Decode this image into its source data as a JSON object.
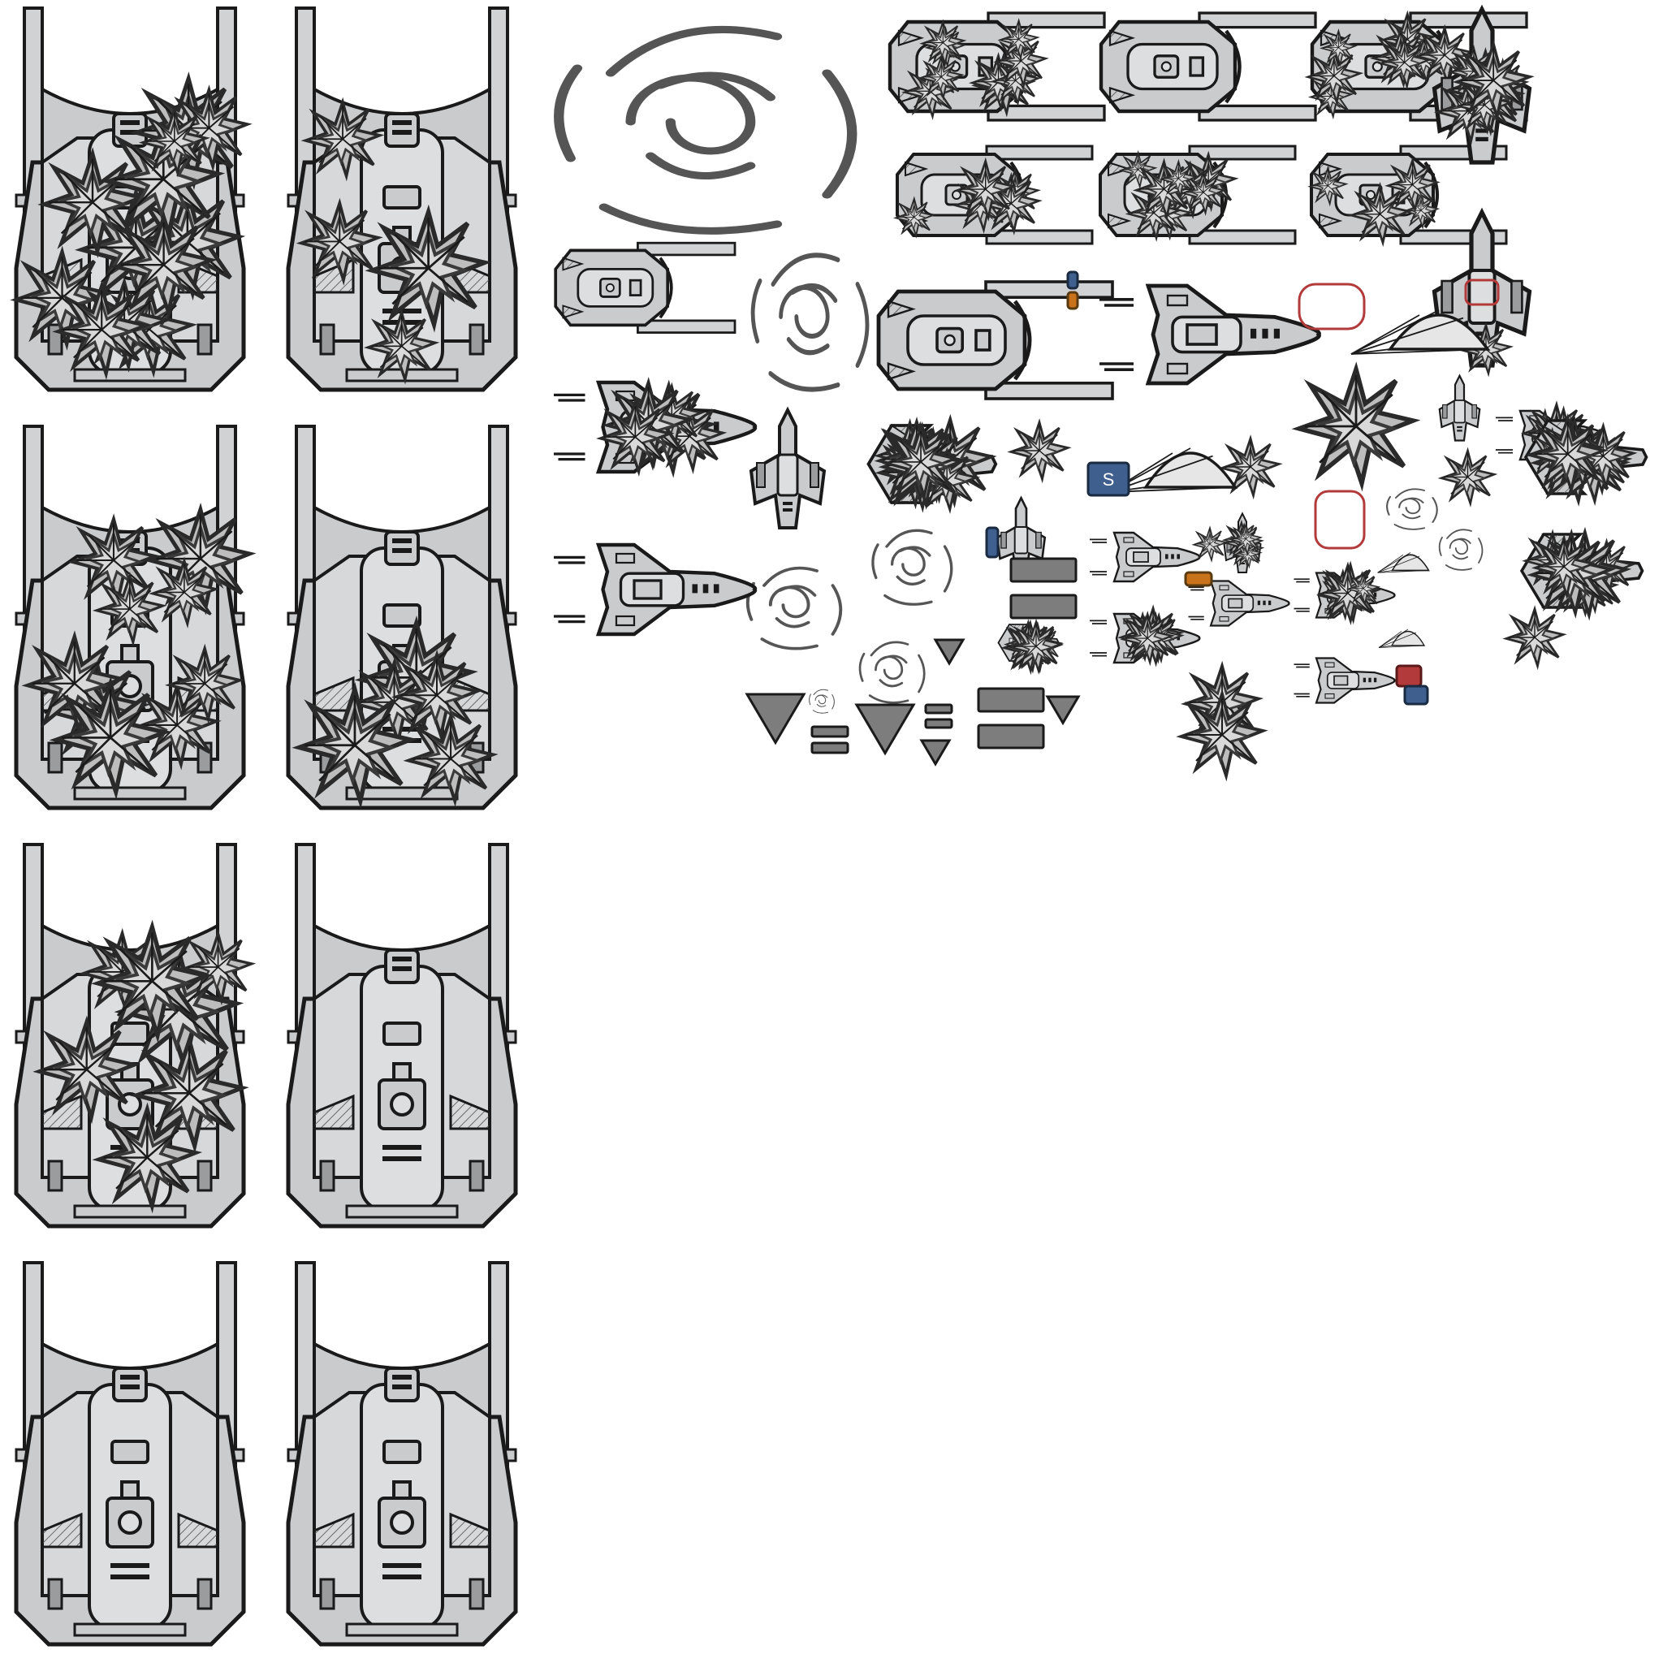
{
  "sheet": {
    "background": "#ffffff",
    "palette": {
      "ink": "#1a1a1a",
      "hull": "#c9cbcd",
      "hull_light": "#dcdedf",
      "hull_dark": "#8e9193",
      "burst": "#3b3b3b",
      "burst_light": "#bdbdbd",
      "smoke": "#555555",
      "crate_red": "#b23a3a",
      "crate_blue": "#3f5f8f",
      "pickup_orange": "#c8731c",
      "parachute": "#e6e6e6",
      "bar_gray": "#7d7d7d"
    }
  },
  "sprites": {
    "boss_frames": [
      {
        "name": "boss-frame-1",
        "damage": 0.98
      },
      {
        "name": "boss-frame-2",
        "damage": 0.3
      },
      {
        "name": "boss-frame-3",
        "damage": 0.75
      },
      {
        "name": "boss-frame-4",
        "damage": 0.4
      },
      {
        "name": "boss-frame-5",
        "damage": 0.55
      },
      {
        "name": "boss-frame-6",
        "damage": 0.0
      },
      {
        "name": "boss-frame-7",
        "damage": 0.0
      },
      {
        "name": "boss-frame-8",
        "damage": 0.0
      }
    ],
    "cruiser_frames": [
      {
        "name": "cruiser-frame-1",
        "damage": 0.95
      },
      {
        "name": "cruiser-frame-2",
        "damage": 0.0
      },
      {
        "name": "cruiser-frame-3",
        "damage": 0.7
      },
      {
        "name": "cruiser-frame-4",
        "damage": 0.4
      },
      {
        "name": "cruiser-frame-5",
        "damage": 0.65
      },
      {
        "name": "cruiser-frame-6",
        "damage": 0.3
      },
      {
        "name": "cruiser-frame-7",
        "damage": 0.0
      },
      {
        "name": "cruiser-frame-8",
        "damage": 0.0
      }
    ],
    "shuttle_frames": [
      {
        "name": "shuttle-frame-1",
        "damage": 0.0
      },
      {
        "name": "shuttle-frame-2",
        "damage": 0.5
      },
      {
        "name": "shuttle-frame-3",
        "damage": 0.0
      },
      {
        "name": "shuttle-frame-4",
        "damage": 0.0
      },
      {
        "name": "shuttle-frame-5",
        "damage": 0.6
      },
      {
        "name": "shuttle-frame-6",
        "damage": 0.0
      },
      {
        "name": "shuttle-frame-7",
        "damage": 0.5
      },
      {
        "name": "shuttle-frame-8",
        "damage": 0.0
      },
      {
        "name": "shuttle-frame-9",
        "damage": 0.5
      }
    ],
    "fighter_frames": [
      {
        "name": "fighter-frame-1",
        "damage": 0.0
      },
      {
        "name": "fighter-frame-2",
        "damage": 0.0
      },
      {
        "name": "fighter-frame-3",
        "damage": 0.0
      },
      {
        "name": "fighter-frame-4",
        "damage": 0.4
      },
      {
        "name": "fighter-frame-5",
        "damage": 0.6
      },
      {
        "name": "fighter-frame-6",
        "damage": 0.0
      }
    ],
    "interceptor_frames": [
      {
        "name": "interceptor-frame-1",
        "damage": 0.9
      },
      {
        "name": "interceptor-frame-2",
        "damage": 0.8
      },
      {
        "name": "interceptor-frame-3",
        "damage": 0.6
      },
      {
        "name": "interceptor-frame-4",
        "damage": 0.8
      }
    ],
    "crate_label": "S"
  }
}
